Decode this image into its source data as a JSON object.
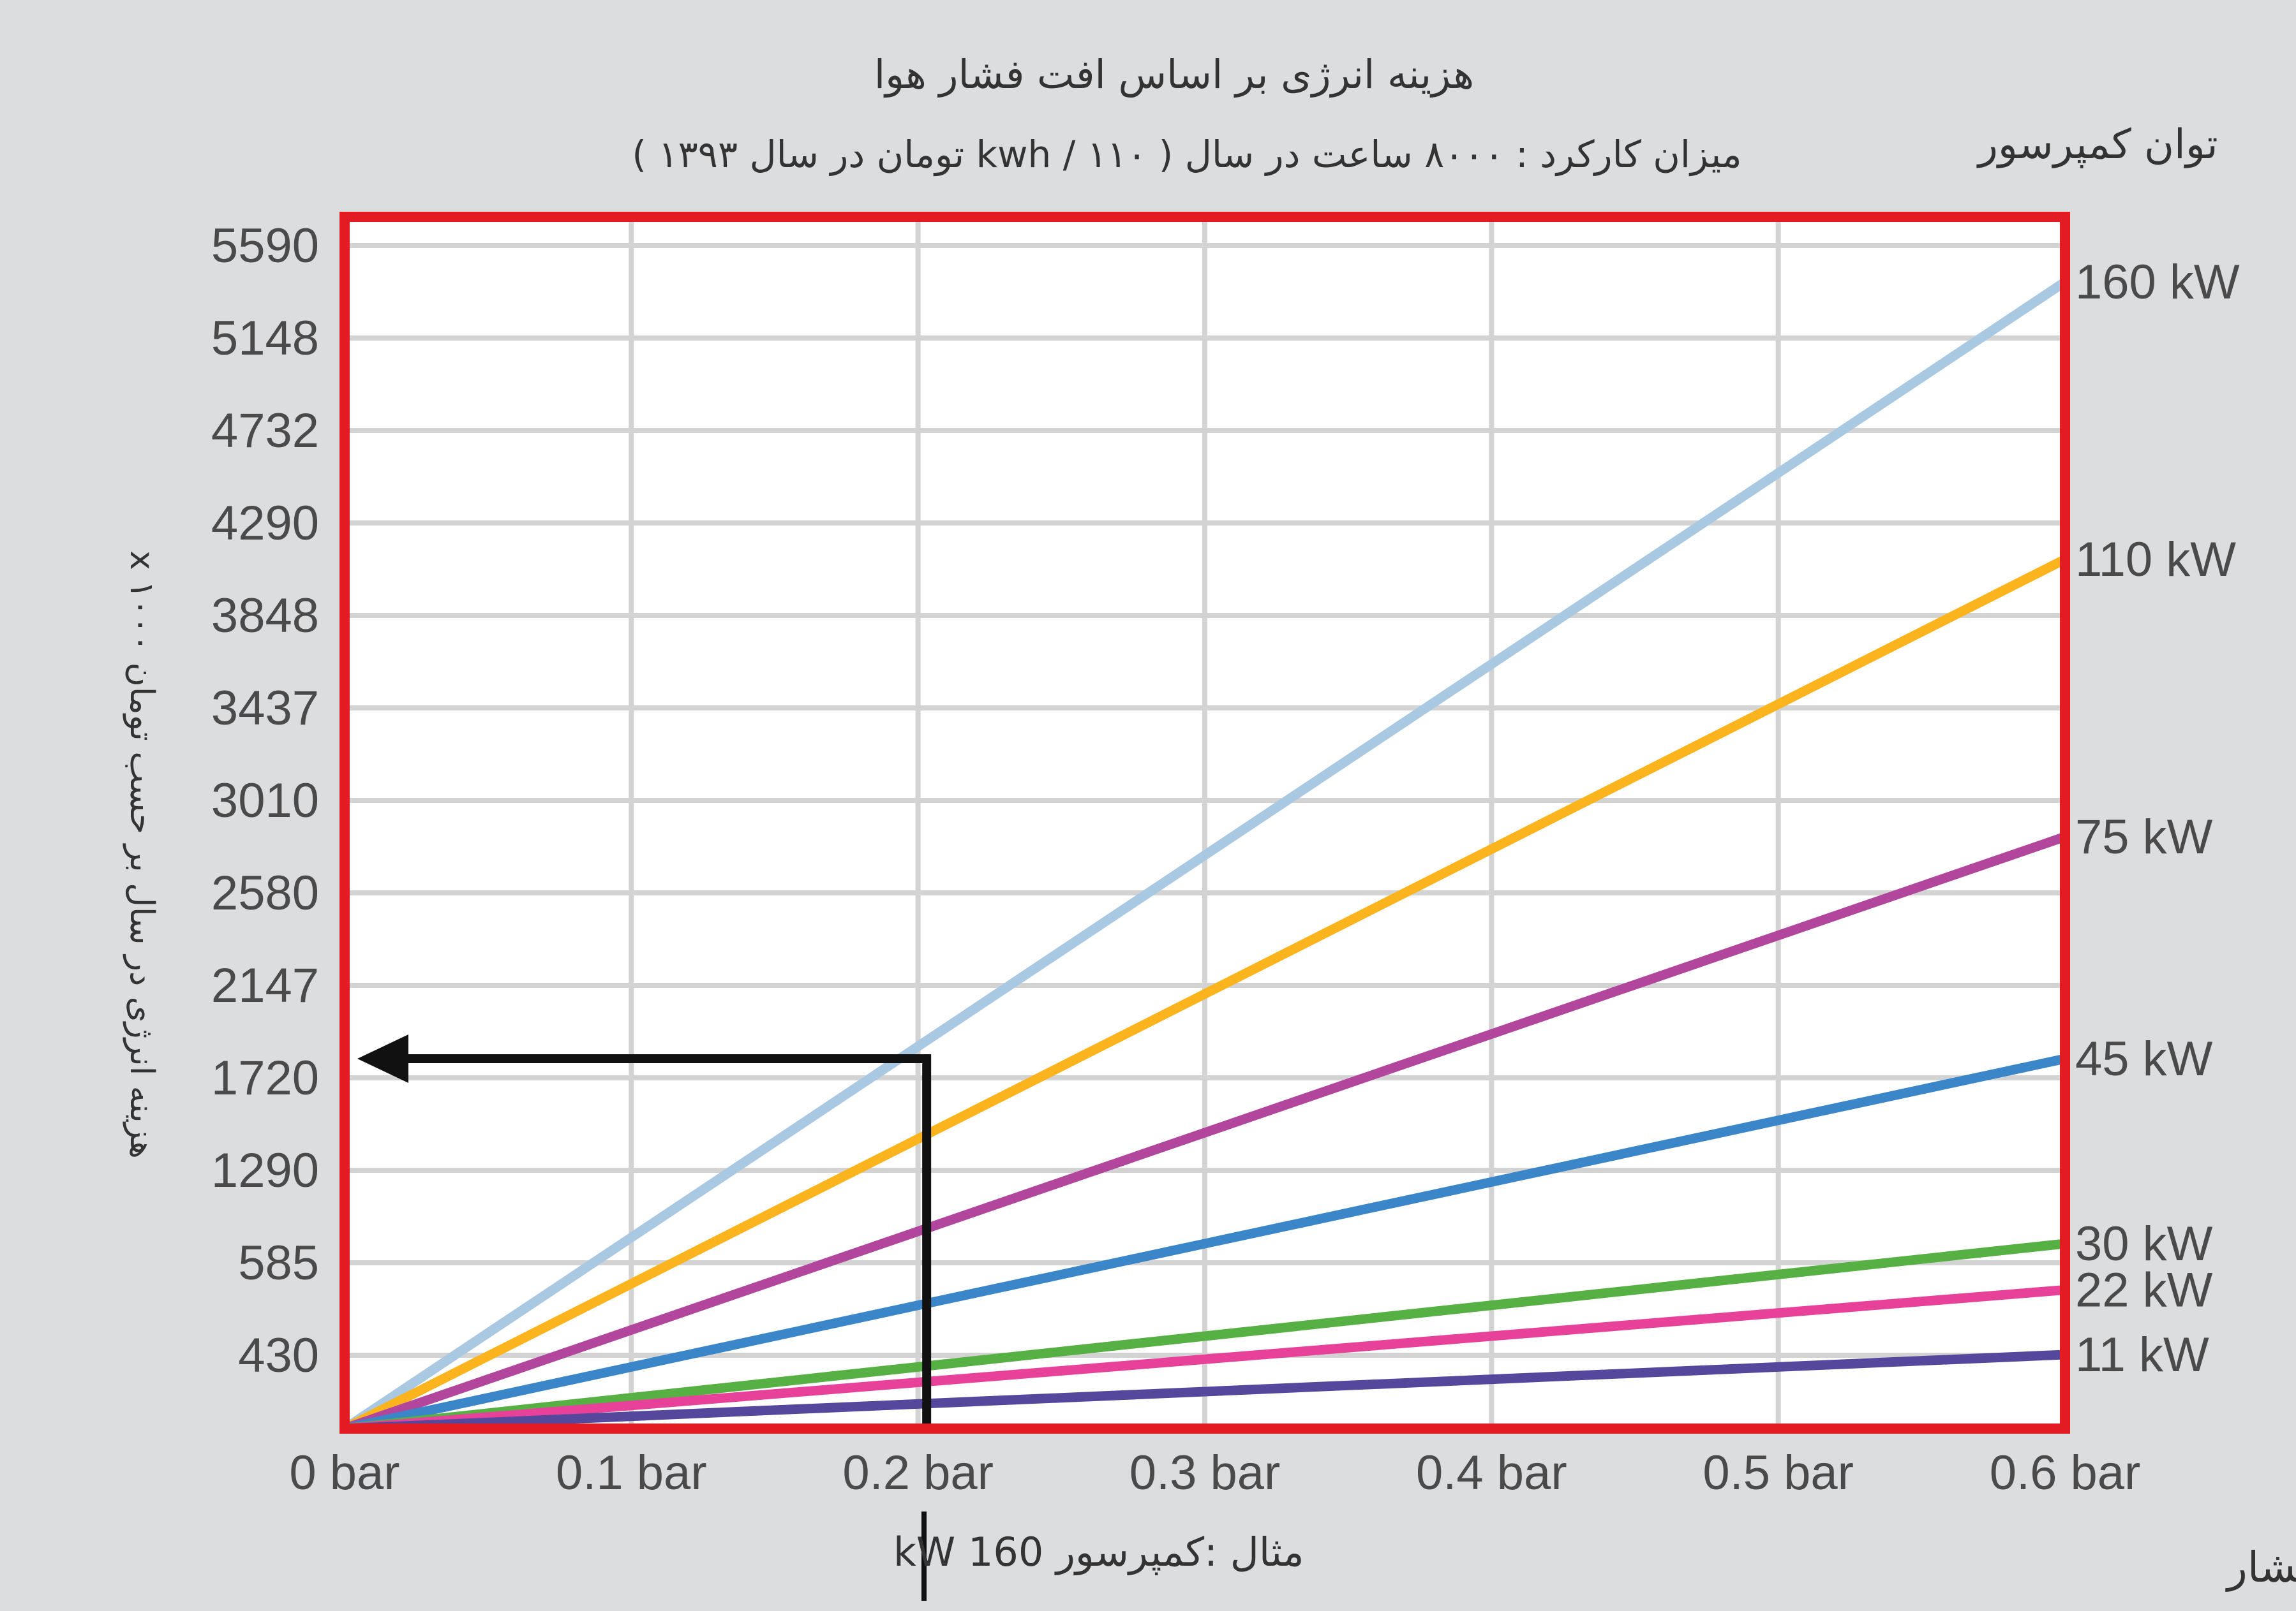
{
  "chart_data": {
    "type": "line",
    "title": "هزینه انرژی بر اساس افت فشار هوا",
    "subtitle": "میزان کارکرد : ۸۰۰۰ ساعت در سال ( ۱۱۰ / kwh تومان در سال ۱۳۹۳ )",
    "right_header": "توان کمپرسور",
    "ylabel": "هزینه انرژی در سال بر حسب تومان x ۱۰۰۰",
    "xlabel": "افت فشار",
    "example_label": "مثال :کمپرسور 160 kW",
    "y_ticks": [
      "5590",
      "5148",
      "4732",
      "4290",
      "3848",
      "3437",
      "3010",
      "2580",
      "2147",
      "1720",
      "1290",
      "585",
      "430"
    ],
    "x_ticks": [
      "0 bar",
      "0.1 bar",
      "0.2 bar",
      "0.3 bar",
      "0.4 bar",
      "0.5 bar",
      "0.6 bar"
    ],
    "x_range": [
      0,
      0.6
    ],
    "grid": true,
    "series": [
      {
        "name": "160 kW",
        "color": "#a9c9e3",
        "x": [
          0,
          0.6
        ],
        "y_level": [
          0,
          12.4
        ]
      },
      {
        "name": "110  kW",
        "color": "#fbb41e",
        "x": [
          0,
          0.6
        ],
        "y_level": [
          0,
          9.4
        ]
      },
      {
        "name": "75 kW",
        "color": "#b2469c",
        "x": [
          0,
          0.6
        ],
        "y_level": [
          0,
          6.4
        ]
      },
      {
        "name": "45 kW",
        "color": "#3b86c8",
        "x": [
          0,
          0.6
        ],
        "y_level": [
          0,
          4.0
        ]
      },
      {
        "name": "30 kW",
        "color": "#57b043",
        "x": [
          0,
          0.6
        ],
        "y_level": [
          0,
          2.0
        ]
      },
      {
        "name": "22 kW",
        "color": "#e7419a",
        "x": [
          0,
          0.6
        ],
        "y_level": [
          0,
          1.5
        ]
      },
      {
        "name": "11 kW",
        "color": "#55489c",
        "x": [
          0,
          0.6
        ],
        "y_level": [
          0,
          0.8
        ]
      }
    ],
    "example": {
      "x": 0.203,
      "y_level": 4.0,
      "value": "1720",
      "series": "160 kW"
    },
    "colors": {
      "frame": "#e31b23",
      "grid": "#d3d3d3",
      "plot_bg": "#ffffff",
      "arrow": "#111111"
    }
  }
}
